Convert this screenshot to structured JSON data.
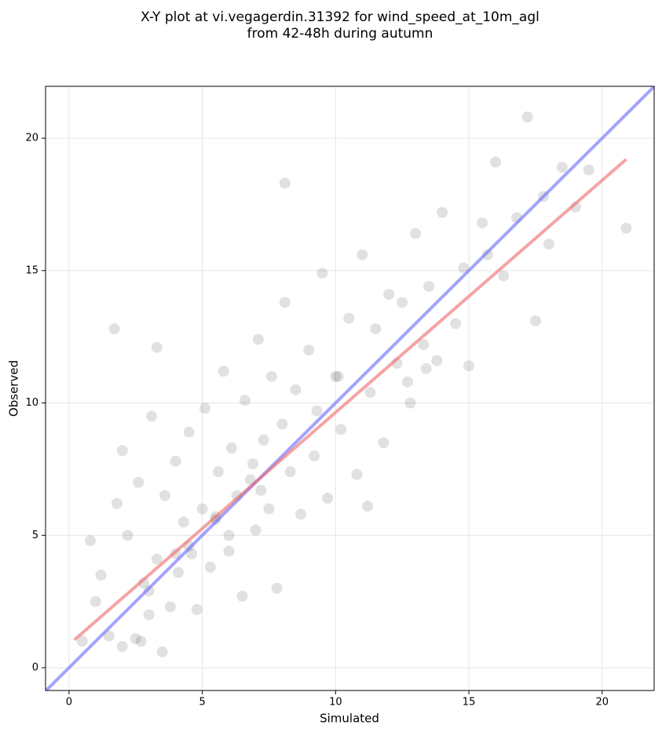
{
  "chart_data": {
    "type": "scatter",
    "title": "X-Y plot at vi.vegagerdin.31392 for wind_speed_at_10m_agl",
    "subtitle": "from 42-48h during autumn",
    "xlabel": "Simulated",
    "ylabel": "Observed",
    "xlim": [
      -0.88,
      21.95
    ],
    "ylim": [
      -0.86,
      21.96
    ],
    "xticks": [
      0,
      5,
      10,
      15,
      20
    ],
    "yticks": [
      0,
      5,
      10,
      15,
      20
    ],
    "grid": true,
    "color": "#333333",
    "x": [
      0.5,
      0.8,
      1.0,
      1.2,
      1.5,
      1.8,
      2.0,
      2.2,
      2.5,
      2.6,
      2.8,
      3.0,
      3.1,
      3.3,
      3.5,
      3.6,
      3.8,
      4.0,
      4.1,
      4.3,
      4.5,
      4.6,
      4.8,
      5.0,
      5.1,
      5.3,
      5.5,
      5.6,
      5.8,
      6.0,
      6.1,
      6.3,
      6.5,
      6.6,
      6.8,
      7.0,
      7.1,
      7.3,
      7.5,
      7.6,
      7.8,
      8.0,
      8.1,
      8.3,
      8.5,
      8.7,
      9.0,
      9.2,
      9.5,
      9.7,
      10.0,
      10.2,
      10.5,
      10.8,
      11.0,
      11.3,
      11.5,
      11.8,
      12.0,
      12.3,
      12.5,
      12.8,
      13.0,
      13.3,
      13.5,
      13.8,
      14.0,
      14.5,
      14.8,
      15.0,
      15.5,
      15.7,
      16.0,
      16.3,
      16.8,
      17.2,
      17.5,
      17.8,
      18.0,
      18.5,
      19.0,
      19.5,
      20.9,
      8.1,
      1.7,
      3.3,
      2.0,
      10.1,
      6.0,
      4.5,
      5.5,
      3.0,
      2.7,
      7.2,
      9.3,
      12.7,
      13.4,
      11.2,
      6.9,
      4.0
    ],
    "values": [
      1.0,
      4.8,
      2.5,
      3.5,
      1.2,
      6.2,
      0.8,
      5.0,
      1.1,
      7.0,
      3.2,
      2.0,
      9.5,
      4.1,
      0.6,
      6.5,
      2.3,
      7.8,
      3.6,
      5.5,
      8.9,
      4.3,
      2.2,
      6.0,
      9.8,
      3.8,
      5.6,
      7.4,
      11.2,
      4.4,
      8.3,
      6.5,
      2.7,
      10.1,
      7.1,
      5.2,
      12.4,
      8.6,
      6.0,
      11.0,
      3.0,
      9.2,
      13.8,
      7.4,
      10.5,
      5.8,
      12.0,
      8.0,
      14.9,
      6.4,
      11.0,
      9.0,
      13.2,
      7.3,
      15.6,
      10.4,
      12.8,
      8.5,
      14.1,
      11.5,
      13.8,
      10.0,
      16.4,
      12.2,
      14.4,
      11.6,
      17.2,
      13.0,
      15.1,
      11.4,
      16.8,
      15.6,
      19.1,
      14.8,
      17.0,
      20.8,
      13.1,
      17.8,
      16.0,
      18.9,
      17.4,
      18.8,
      16.6,
      18.3,
      12.8,
      12.1,
      8.2,
      11.0,
      5.0,
      4.6,
      5.7,
      2.9,
      1.0,
      6.7,
      9.7,
      10.8,
      11.3,
      6.1,
      7.7,
      4.3
    ],
    "lines": [
      {
        "color": "#6666ff",
        "x": [
          -0.88,
          21.95
        ],
        "values": [
          -0.88,
          21.95
        ]
      },
      {
        "color": "#ee6666",
        "x": [
          0.2,
          20.9
        ],
        "values": [
          1.05,
          19.2
        ]
      }
    ]
  }
}
